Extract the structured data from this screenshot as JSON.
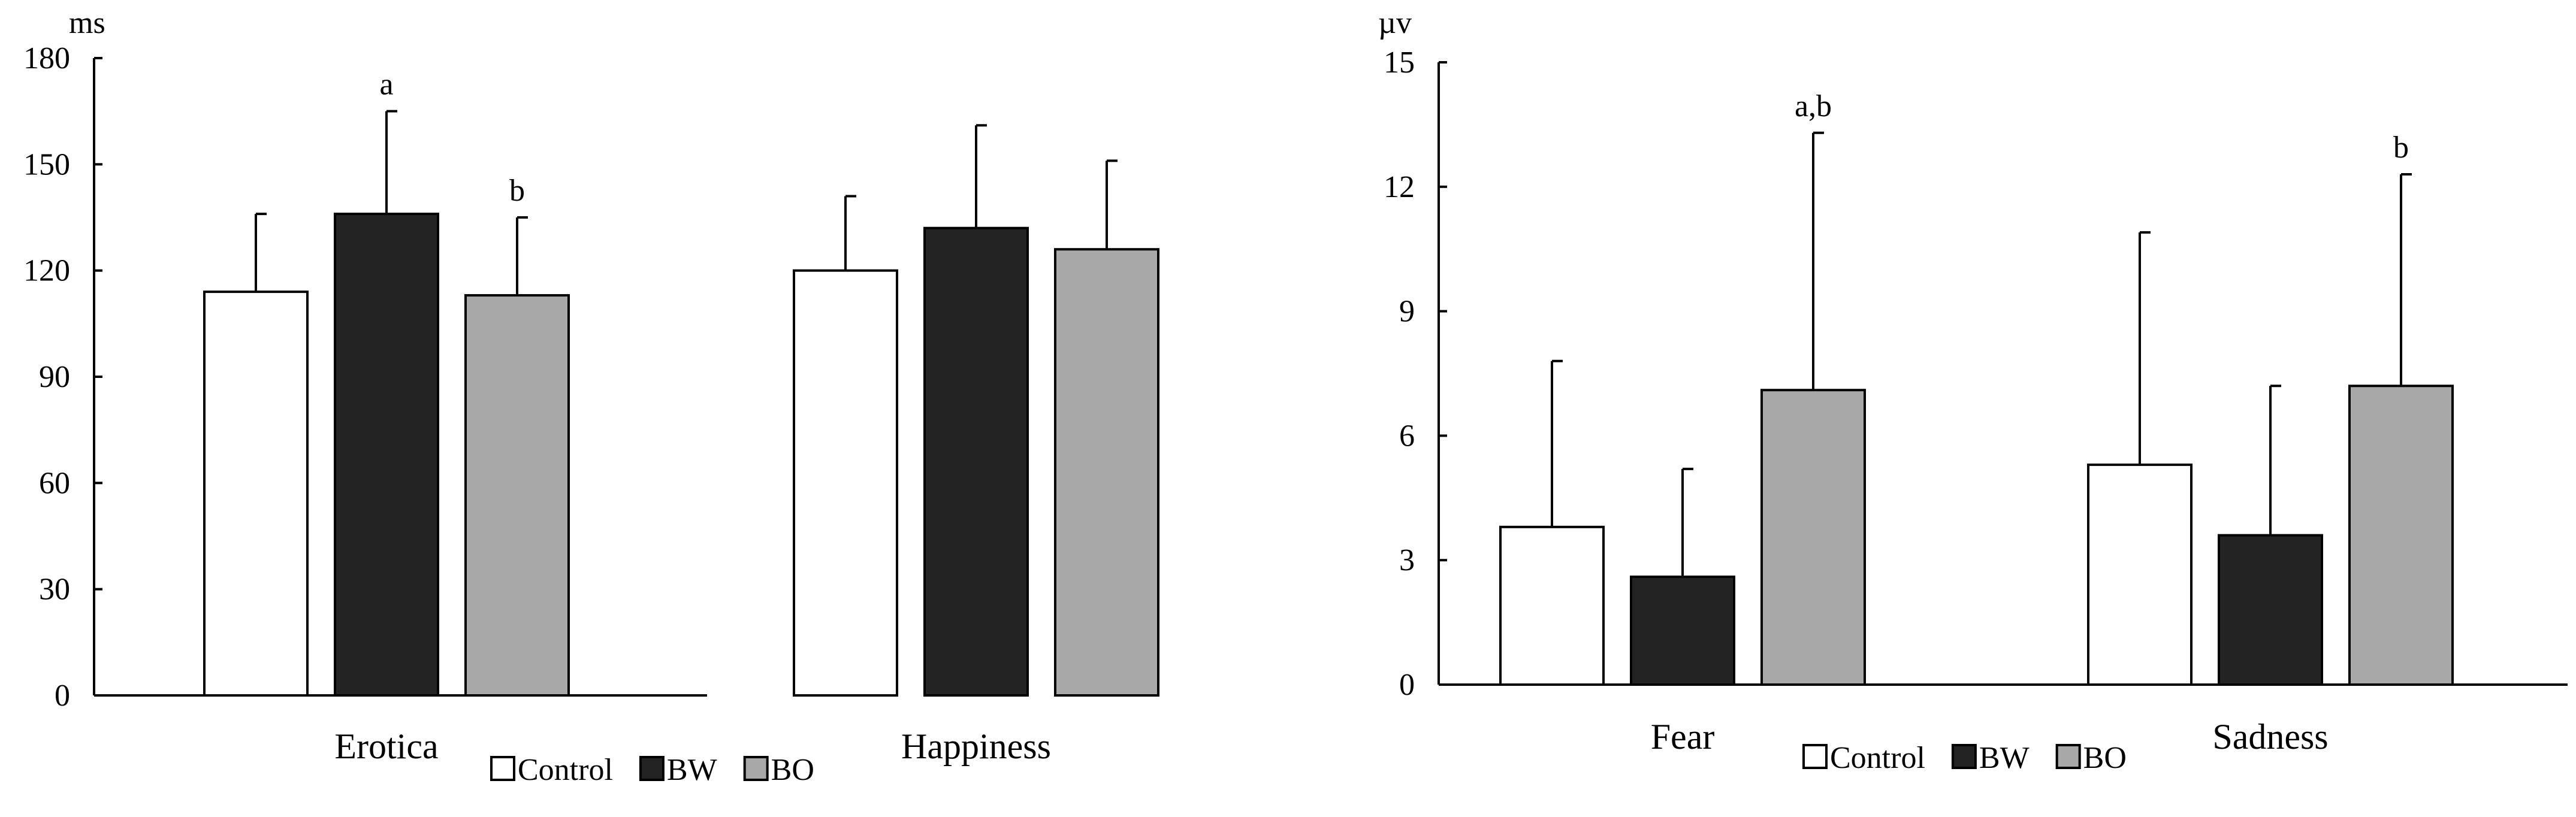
{
  "colors": {
    "Control": "#ffffff",
    "BW": "#232323",
    "BO": "#a8a8a8",
    "stroke": "#000000"
  },
  "chart_data": [
    {
      "type": "bar",
      "unit_label": "ms",
      "categories": [
        "Erotica",
        "Happiness"
      ],
      "series": [
        {
          "name": "Control",
          "values": [
            114,
            120
          ],
          "errors": [
            22,
            21
          ]
        },
        {
          "name": "BW",
          "values": [
            136,
            132
          ],
          "errors": [
            29,
            29
          ]
        },
        {
          "name": "BO",
          "values": [
            113,
            126
          ],
          "errors": [
            22,
            25
          ]
        }
      ],
      "annotations": [
        {
          "category": "Erotica",
          "series": "BW",
          "text": "a"
        },
        {
          "category": "Erotica",
          "series": "BO",
          "text": "b"
        }
      ],
      "ylim": [
        0,
        180
      ],
      "yticks": [
        0,
        30,
        60,
        90,
        120,
        150,
        180
      ],
      "legend": [
        "Control",
        "BW",
        "BO"
      ],
      "legend_position": "bottom-center"
    },
    {
      "type": "bar",
      "unit_label": "µv",
      "categories": [
        "Fear",
        "Sadness"
      ],
      "series": [
        {
          "name": "Control",
          "values": [
            3.8,
            5.3
          ],
          "errors": [
            4.0,
            5.6
          ]
        },
        {
          "name": "BW",
          "values": [
            2.6,
            3.6
          ],
          "errors": [
            2.6,
            3.6
          ]
        },
        {
          "name": "BO",
          "values": [
            7.1,
            7.2
          ],
          "errors": [
            6.2,
            5.1
          ]
        }
      ],
      "annotations": [
        {
          "category": "Fear",
          "series": "BO",
          "text": "a,b"
        },
        {
          "category": "Sadness",
          "series": "BO",
          "text": "b"
        }
      ],
      "ylim": [
        0,
        15
      ],
      "yticks": [
        0,
        3,
        6,
        9,
        12,
        15
      ],
      "legend": [
        "Control",
        "BW",
        "BO"
      ],
      "legend_position": "bottom-center"
    }
  ]
}
